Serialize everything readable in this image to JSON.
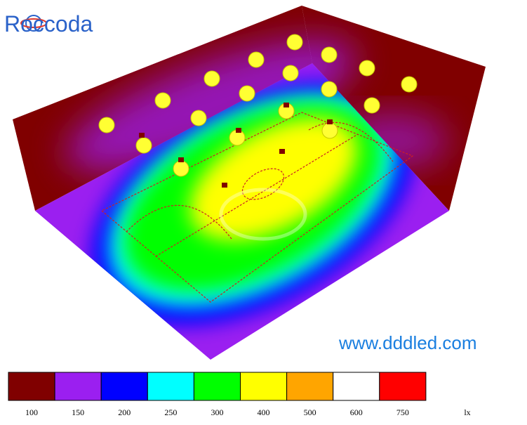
{
  "logo": "Roccoda",
  "website": "www.dddled.com",
  "legend": {
    "unit": "lx",
    "items": [
      {
        "label": "100",
        "color": "#800000"
      },
      {
        "label": "150",
        "color": "#9b1ff0"
      },
      {
        "label": "200",
        "color": "#0000ff"
      },
      {
        "label": "250",
        "color": "#00ffff"
      },
      {
        "label": "300",
        "color": "#00ff00"
      },
      {
        "label": "400",
        "color": "#ffff00"
      },
      {
        "label": "500",
        "color": "#ffa500"
      },
      {
        "label": "600",
        "color": "#ffffff"
      },
      {
        "label": "750",
        "color": "#ff0000"
      }
    ]
  }
}
